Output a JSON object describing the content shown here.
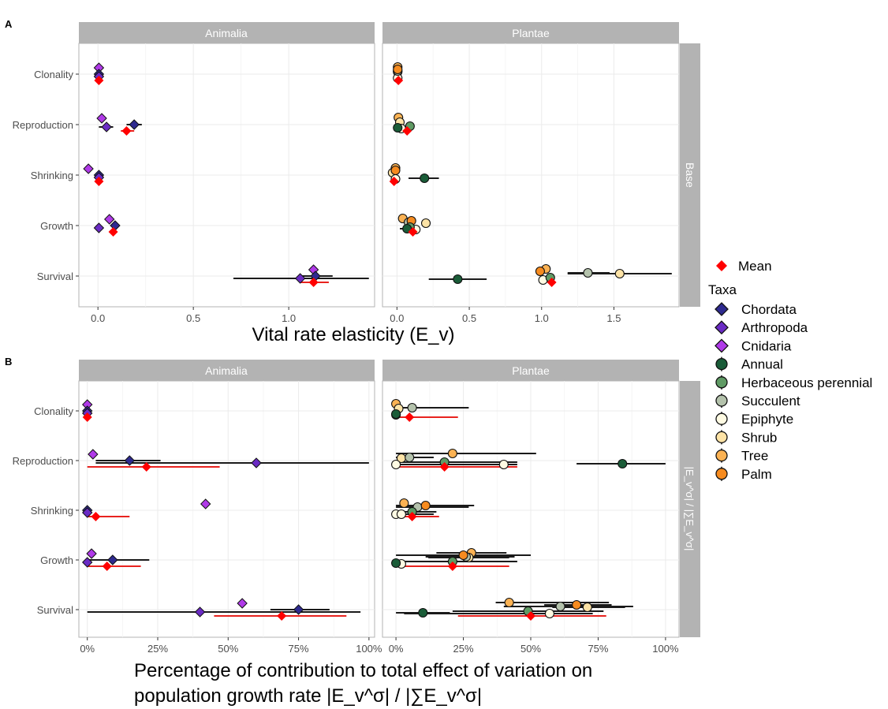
{
  "figure": {
    "panel_labels": [
      "A",
      "B"
    ],
    "facet_columns": [
      "Animalia",
      "Plantae"
    ],
    "row_strip_A": "Base",
    "row_strip_B": "|E_v^σ| / |∑E_v^σ|",
    "xlabel_A": "Vital rate elasticity (E_v)",
    "xlabel_B_line1": "Percentage of contribution to total effect of variation on",
    "xlabel_B_line2": "population growth rate |E_v^σ| / |∑E_v^σ|",
    "categories": [
      "Clonality",
      "Reproduction",
      "Shrinking",
      "Growth",
      "Survival"
    ]
  },
  "legend": {
    "mean_label": "Mean",
    "taxa_title": "Taxa",
    "taxa": [
      "Chordata",
      "Arthropoda",
      "Cnidaria",
      "Annual",
      "Herbaceous perennial",
      "Succulent",
      "Epiphyte",
      "Shrub",
      "Tree",
      "Palm"
    ]
  },
  "colors": {
    "Mean": "#ff0000",
    "MeanLine": "#e8231f",
    "Chordata": "#2e2a8f",
    "Arthropoda": "#6a2bc4",
    "Cnidaria": "#b03ae8",
    "Annual": "#1a5c38",
    "Herbaceous perennial": "#5f9a64",
    "Succulent": "#b4c2ac",
    "Epiphyte": "#fffbe3",
    "Shrub": "#fde3a6",
    "Tree": "#fbb253",
    "Palm": "#f68b1f",
    "strip": "#b3b3b3",
    "grid": "#ebebeb"
  },
  "chart_data": [
    {
      "type": "scatter",
      "panel": "A",
      "facet": "Animalia",
      "xlim": [
        -0.1,
        1.45
      ],
      "xticks": [
        0.0,
        0.5,
        1.0
      ],
      "xticklabels": [
        "0.0",
        "0.5",
        "1.0"
      ],
      "points": [
        {
          "cat": "Clonality",
          "taxon": "Cnidaria",
          "x": 0.005
        },
        {
          "cat": "Clonality",
          "taxon": "Chordata",
          "x": 0.005
        },
        {
          "cat": "Clonality",
          "taxon": "Arthropoda",
          "x": 0.005
        },
        {
          "cat": "Clonality",
          "taxon": "Mean",
          "x": 0.005
        },
        {
          "cat": "Reproduction",
          "taxon": "Cnidaria",
          "x": 0.02
        },
        {
          "cat": "Reproduction",
          "taxon": "Chordata",
          "x": 0.19,
          "lo": 0.15,
          "hi": 0.23
        },
        {
          "cat": "Reproduction",
          "taxon": "Arthropoda",
          "x": 0.045,
          "lo": 0.005,
          "hi": 0.08
        },
        {
          "cat": "Reproduction",
          "taxon": "Mean",
          "x": 0.15,
          "lo": 0.12,
          "hi": 0.19
        },
        {
          "cat": "Shrinking",
          "taxon": "Cnidaria",
          "x": -0.05
        },
        {
          "cat": "Shrinking",
          "taxon": "Chordata",
          "x": 0.005
        },
        {
          "cat": "Shrinking",
          "taxon": "Arthropoda",
          "x": 0.005
        },
        {
          "cat": "Shrinking",
          "taxon": "Mean",
          "x": 0.005
        },
        {
          "cat": "Growth",
          "taxon": "Cnidaria",
          "x": 0.06
        },
        {
          "cat": "Growth",
          "taxon": "Chordata",
          "x": 0.09
        },
        {
          "cat": "Growth",
          "taxon": "Arthropoda",
          "x": 0.005
        },
        {
          "cat": "Growth",
          "taxon": "Mean",
          "x": 0.08
        },
        {
          "cat": "Survival",
          "taxon": "Cnidaria",
          "x": 1.13
        },
        {
          "cat": "Survival",
          "taxon": "Chordata",
          "x": 1.14,
          "lo": 1.07,
          "hi": 1.23
        },
        {
          "cat": "Survival",
          "taxon": "Arthropoda",
          "x": 1.06,
          "lo": 0.71,
          "hi": 1.42
        },
        {
          "cat": "Survival",
          "taxon": "Mean",
          "x": 1.13,
          "lo": 1.06,
          "hi": 1.21
        }
      ]
    },
    {
      "type": "scatter",
      "panel": "A",
      "facet": "Plantae",
      "xlim": [
        -0.1,
        1.95
      ],
      "xticks": [
        0.0,
        0.5,
        1.0,
        1.5
      ],
      "xticklabels": [
        "0.0",
        "0.5",
        "1.0",
        "1.5"
      ],
      "points": [
        {
          "cat": "Clonality",
          "taxon": "Tree",
          "x": 0.005
        },
        {
          "cat": "Clonality",
          "taxon": "Shrub",
          "x": 0.005
        },
        {
          "cat": "Clonality",
          "taxon": "Epiphyte",
          "x": 0.005
        },
        {
          "cat": "Clonality",
          "taxon": "Succulent",
          "x": 0.005
        },
        {
          "cat": "Clonality",
          "taxon": "Palm",
          "x": 0.005
        },
        {
          "cat": "Clonality",
          "taxon": "Mean",
          "x": 0.01
        },
        {
          "cat": "Reproduction",
          "taxon": "Tree",
          "x": 0.01
        },
        {
          "cat": "Reproduction",
          "taxon": "Shrub",
          "x": 0.02
        },
        {
          "cat": "Reproduction",
          "taxon": "Epiphyte",
          "x": 0.03
        },
        {
          "cat": "Reproduction",
          "taxon": "Herbaceous perennial",
          "x": 0.09
        },
        {
          "cat": "Reproduction",
          "taxon": "Annual",
          "x": 0.005
        },
        {
          "cat": "Reproduction",
          "taxon": "Mean",
          "x": 0.07
        },
        {
          "cat": "Shrinking",
          "taxon": "Tree",
          "x": -0.01
        },
        {
          "cat": "Shrinking",
          "taxon": "Shrub",
          "x": -0.03
        },
        {
          "cat": "Shrinking",
          "taxon": "Epiphyte",
          "x": -0.01
        },
        {
          "cat": "Shrinking",
          "taxon": "Palm",
          "x": -0.01
        },
        {
          "cat": "Shrinking",
          "taxon": "Annual",
          "x": 0.19,
          "lo": 0.08,
          "hi": 0.29
        },
        {
          "cat": "Shrinking",
          "taxon": "Mean",
          "x": -0.02
        },
        {
          "cat": "Growth",
          "taxon": "Tree",
          "x": 0.04
        },
        {
          "cat": "Growth",
          "taxon": "Shrub",
          "x": 0.2
        },
        {
          "cat": "Growth",
          "taxon": "Succulent",
          "x": 0.08
        },
        {
          "cat": "Growth",
          "taxon": "Epiphyte",
          "x": 0.13
        },
        {
          "cat": "Growth",
          "taxon": "Palm",
          "x": 0.1
        },
        {
          "cat": "Growth",
          "taxon": "Herbaceous perennial",
          "x": 0.09
        },
        {
          "cat": "Growth",
          "taxon": "Annual",
          "x": 0.07,
          "lo": 0.02,
          "hi": 0.12
        },
        {
          "cat": "Growth",
          "taxon": "Mean",
          "x": 0.11
        },
        {
          "cat": "Survival",
          "taxon": "Tree",
          "x": 1.03
        },
        {
          "cat": "Survival",
          "taxon": "Palm",
          "x": 0.99
        },
        {
          "cat": "Survival",
          "taxon": "Epiphyte",
          "x": 1.01
        },
        {
          "cat": "Survival",
          "taxon": "Succulent",
          "x": 1.32,
          "lo": 1.18,
          "hi": 1.47
        },
        {
          "cat": "Survival",
          "taxon": "Shrub",
          "x": 1.54,
          "lo": 1.18,
          "hi": 1.9
        },
        {
          "cat": "Survival",
          "taxon": "Herbaceous perennial",
          "x": 1.06
        },
        {
          "cat": "Survival",
          "taxon": "Annual",
          "x": 0.42,
          "lo": 0.22,
          "hi": 0.62
        },
        {
          "cat": "Survival",
          "taxon": "Mean",
          "x": 1.07
        }
      ]
    },
    {
      "type": "scatter",
      "panel": "B",
      "facet": "Animalia",
      "xlim": [
        -3,
        102
      ],
      "xticks": [
        0,
        25,
        50,
        75,
        100
      ],
      "xticklabels": [
        "0%",
        "25%",
        "50%",
        "75%",
        "100%"
      ],
      "points": [
        {
          "cat": "Clonality",
          "taxon": "Cnidaria",
          "x": 0
        },
        {
          "cat": "Clonality",
          "taxon": "Chordata",
          "x": 0
        },
        {
          "cat": "Clonality",
          "taxon": "Arthropoda",
          "x": 0
        },
        {
          "cat": "Clonality",
          "taxon": "Mean",
          "x": 0
        },
        {
          "cat": "Reproduction",
          "taxon": "Cnidaria",
          "x": 2
        },
        {
          "cat": "Reproduction",
          "taxon": "Chordata",
          "x": 15,
          "lo": 3,
          "hi": 26
        },
        {
          "cat": "Reproduction",
          "taxon": "Arthropoda",
          "x": 60,
          "lo": 3,
          "hi": 100
        },
        {
          "cat": "Reproduction",
          "taxon": "Mean",
          "x": 21,
          "lo": 0,
          "hi": 47
        },
        {
          "cat": "Shrinking",
          "taxon": "Cnidaria",
          "x": 42
        },
        {
          "cat": "Shrinking",
          "taxon": "Chordata",
          "x": 0
        },
        {
          "cat": "Shrinking",
          "taxon": "Arthropoda",
          "x": 0
        },
        {
          "cat": "Shrinking",
          "taxon": "Mean",
          "x": 3,
          "lo": 0,
          "hi": 15
        },
        {
          "cat": "Growth",
          "taxon": "Cnidaria",
          "x": 1.5
        },
        {
          "cat": "Growth",
          "taxon": "Chordata",
          "x": 9,
          "lo": 0,
          "hi": 22
        },
        {
          "cat": "Growth",
          "taxon": "Arthropoda",
          "x": 0
        },
        {
          "cat": "Growth",
          "taxon": "Mean",
          "x": 7,
          "lo": 0,
          "hi": 19
        },
        {
          "cat": "Survival",
          "taxon": "Cnidaria",
          "x": 55
        },
        {
          "cat": "Survival",
          "taxon": "Chordata",
          "x": 75,
          "lo": 65,
          "hi": 86
        },
        {
          "cat": "Survival",
          "taxon": "Arthropoda",
          "x": 40,
          "lo": 0,
          "hi": 97
        },
        {
          "cat": "Survival",
          "taxon": "Mean",
          "x": 69,
          "lo": 45,
          "hi": 92
        }
      ]
    },
    {
      "type": "scatter",
      "panel": "B",
      "facet": "Plantae",
      "xlim": [
        -5,
        105
      ],
      "xticks": [
        0,
        25,
        50,
        75,
        100
      ],
      "xticklabels": [
        "0%",
        "25%",
        "50%",
        "75%",
        "100%"
      ],
      "points": [
        {
          "cat": "Clonality",
          "taxon": "Tree",
          "x": 0
        },
        {
          "cat": "Clonality",
          "taxon": "Shrub",
          "x": 1
        },
        {
          "cat": "Clonality",
          "taxon": "Epiphyte",
          "x": 0
        },
        {
          "cat": "Clonality",
          "taxon": "Succulent",
          "x": 6,
          "lo": 0,
          "hi": 27
        },
        {
          "cat": "Clonality",
          "taxon": "Annual",
          "x": 0
        },
        {
          "cat": "Clonality",
          "taxon": "Mean",
          "x": 5,
          "lo": 0,
          "hi": 23
        },
        {
          "cat": "Reproduction",
          "taxon": "Shrub",
          "x": 2
        },
        {
          "cat": "Reproduction",
          "taxon": "Succulent",
          "x": 5,
          "lo": 0,
          "hi": 14
        },
        {
          "cat": "Reproduction",
          "taxon": "Epiphyte",
          "x": 0
        },
        {
          "cat": "Reproduction",
          "taxon": "Tree",
          "x": 21,
          "lo": 0,
          "hi": 52
        },
        {
          "cat": "Reproduction",
          "taxon": "Herbaceous perennial",
          "x": 18,
          "lo": 0,
          "hi": 45
        },
        {
          "cat": "Reproduction",
          "taxon": "Epiphyte",
          "x": 40,
          "lo": 0,
          "hi": 45
        },
        {
          "cat": "Reproduction",
          "taxon": "Annual",
          "x": 84,
          "lo": 67,
          "hi": 100
        },
        {
          "cat": "Reproduction",
          "taxon": "Mean",
          "x": 18,
          "lo": 0,
          "hi": 45
        },
        {
          "cat": "Shrinking",
          "taxon": "Tree",
          "x": 3
        },
        {
          "cat": "Shrinking",
          "taxon": "Succulent",
          "x": 8,
          "lo": 0,
          "hi": 27
        },
        {
          "cat": "Shrinking",
          "taxon": "Epiphyte",
          "x": 0
        },
        {
          "cat": "Shrinking",
          "taxon": "Palm",
          "x": 11,
          "lo": 0,
          "hi": 29
        },
        {
          "cat": "Shrinking",
          "taxon": "Herbaceous perennial",
          "x": 6,
          "lo": 0,
          "hi": 15
        },
        {
          "cat": "Shrinking",
          "taxon": "Epiphyte",
          "x": 2,
          "lo": 0,
          "hi": 14
        },
        {
          "cat": "Shrinking",
          "taxon": "Mean",
          "x": 6,
          "lo": 0,
          "hi": 16
        },
        {
          "cat": "Growth",
          "taxon": "Tree",
          "x": 28,
          "lo": 15,
          "hi": 41
        },
        {
          "cat": "Growth",
          "taxon": "Shrub",
          "x": 27,
          "lo": 12,
          "hi": 42
        },
        {
          "cat": "Growth",
          "taxon": "Succulent",
          "x": 26,
          "lo": 11,
          "hi": 44
        },
        {
          "cat": "Growth",
          "taxon": "Palm",
          "x": 25,
          "lo": 0,
          "hi": 50
        },
        {
          "cat": "Growth",
          "taxon": "Herbaceous perennial",
          "x": 21,
          "lo": 0,
          "hi": 45
        },
        {
          "cat": "Growth",
          "taxon": "Epiphyte",
          "x": 2
        },
        {
          "cat": "Growth",
          "taxon": "Annual",
          "x": 0
        },
        {
          "cat": "Growth",
          "taxon": "Mean",
          "x": 21,
          "lo": 0,
          "hi": 42
        },
        {
          "cat": "Survival",
          "taxon": "Palm",
          "x": 67,
          "lo": 55,
          "hi": 80
        },
        {
          "cat": "Survival",
          "taxon": "Shrub",
          "x": 71,
          "lo": 58,
          "hi": 85
        },
        {
          "cat": "Survival",
          "taxon": "Succulent",
          "x": 61,
          "lo": 40,
          "hi": 88
        },
        {
          "cat": "Survival",
          "taxon": "Tree",
          "x": 42,
          "lo": 37,
          "hi": 79
        },
        {
          "cat": "Survival",
          "taxon": "Herbaceous perennial",
          "x": 49,
          "lo": 21,
          "hi": 77
        },
        {
          "cat": "Survival",
          "taxon": "Epiphyte",
          "x": 57,
          "lo": 3,
          "hi": 73
        },
        {
          "cat": "Survival",
          "taxon": "Annual",
          "x": 10,
          "lo": 0,
          "hi": 20
        },
        {
          "cat": "Survival",
          "taxon": "Mean",
          "x": 50,
          "lo": 23,
          "hi": 78
        }
      ]
    }
  ]
}
